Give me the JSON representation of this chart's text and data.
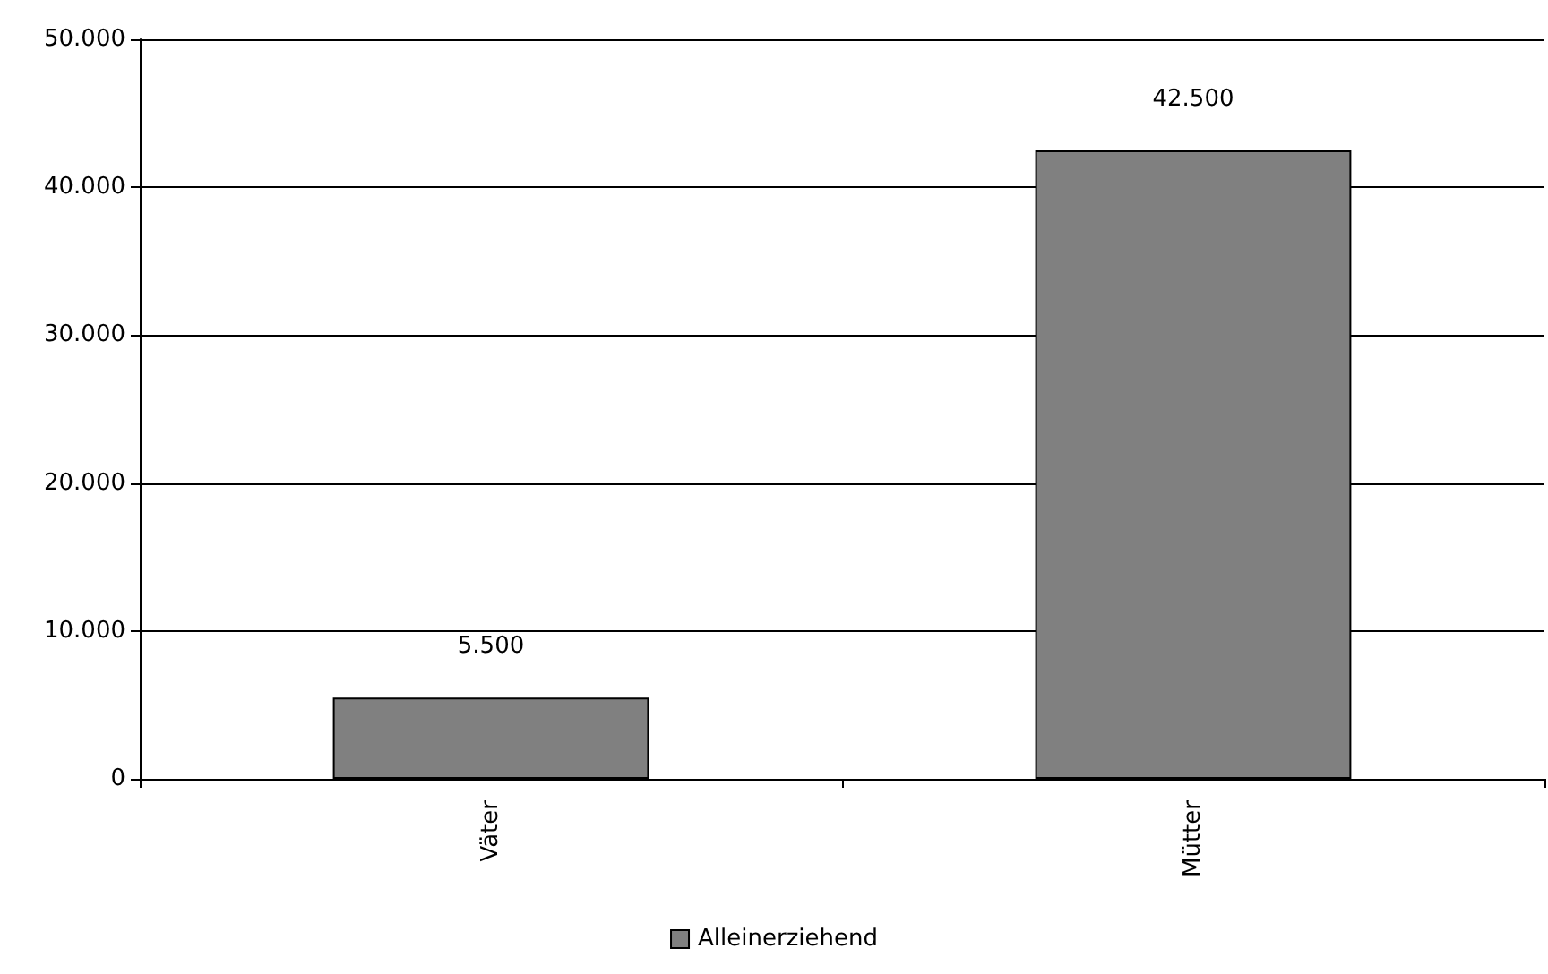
{
  "chart_data": {
    "type": "bar",
    "categories": [
      "Väter",
      "Mütter"
    ],
    "series": [
      {
        "name": "Alleinerziehend",
        "color": "#808080",
        "values": [
          5500,
          42500
        ],
        "value_labels": [
          "5.500",
          "42.500"
        ]
      }
    ],
    "ylim": [
      0,
      50000
    ],
    "yticks": [
      0,
      {
        "value": 10000,
        "label": "10.000"
      },
      {
        "value": 20000,
        "label": "20.000"
      },
      {
        "value": 30000,
        "label": "30.000"
      },
      {
        "value": 40000,
        "label": "40.000"
      },
      {
        "value": 50000,
        "label": "50.000"
      }
    ],
    "grid": "y",
    "legend": "bottom"
  }
}
